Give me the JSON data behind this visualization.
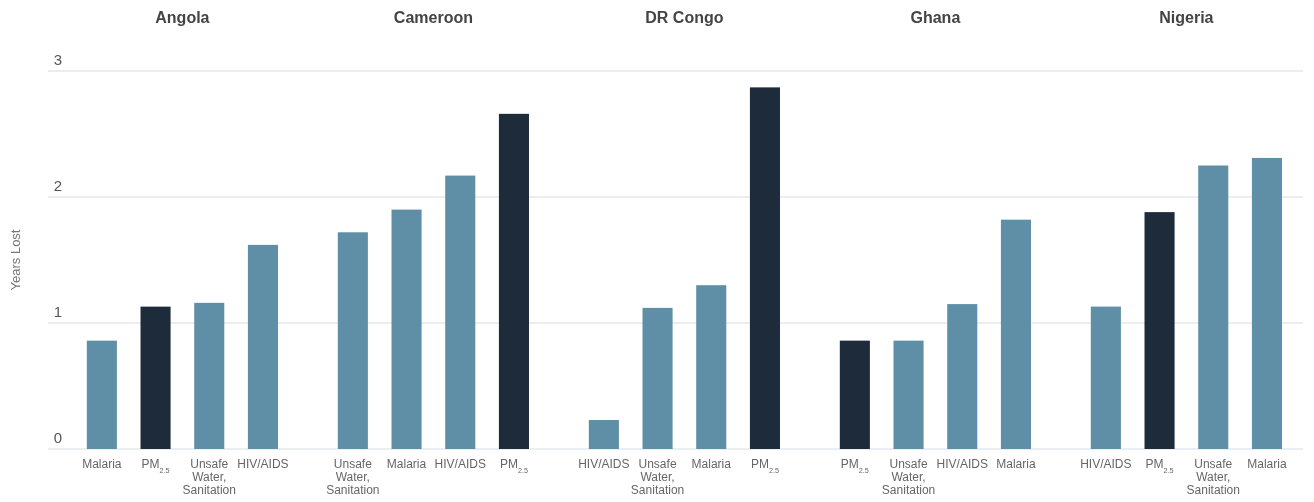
{
  "chart_data": [
    {
      "type": "bar",
      "title": "Angola",
      "ylabel": "Years Lost",
      "categories": [
        "Malaria",
        "PM$_{2.5}$",
        "Unsafe Water, Sanitation",
        "HIV/AIDS"
      ],
      "values": [
        0.86,
        1.13,
        1.16,
        1.62
      ],
      "colors": [
        "#5e8fa6",
        "#1e2b3a",
        "#5e8fa6",
        "#5e8fa6"
      ],
      "ylim": [
        0,
        3
      ],
      "yticks": [
        0,
        1,
        2,
        3
      ],
      "grid": "y"
    },
    {
      "type": "bar",
      "title": "Cameroon",
      "categories": [
        "Unsafe Water, Sanitation",
        "Malaria",
        "HIV/AIDS",
        "PM$_{2.5}$"
      ],
      "values": [
        1.72,
        1.9,
        2.17,
        2.66
      ],
      "colors": [
        "#5e8fa6",
        "#5e8fa6",
        "#5e8fa6",
        "#1e2b3a"
      ],
      "ylim": [
        0,
        3
      ],
      "yticks": [
        0,
        1,
        2,
        3
      ],
      "grid": "y",
      "tick_labels": "x"
    },
    {
      "type": "bar",
      "title": "DR Congo",
      "categories": [
        "HIV/AIDS",
        "Unsafe Water, Sanitation",
        "Malaria",
        "PM$_{2.5}$"
      ],
      "values": [
        0.23,
        1.12,
        1.3,
        2.87
      ],
      "colors": [
        "#5e8fa6",
        "#5e8fa6",
        "#5e8fa6",
        "#1e2b3a"
      ],
      "ylim": [
        0,
        3
      ],
      "yticks": [
        0,
        1,
        2,
        3
      ],
      "grid": "y",
      "tick_labels": "x"
    },
    {
      "type": "bar",
      "title": "Ghana",
      "categories": [
        "PM$_{2.5}$",
        "Unsafe Water, Sanitation",
        "HIV/AIDS",
        "Malaria"
      ],
      "values": [
        0.86,
        0.86,
        1.15,
        1.82
      ],
      "colors": [
        "#1e2b3a",
        "#5e8fa6",
        "#5e8fa6",
        "#5e8fa6"
      ],
      "ylim": [
        0,
        3
      ],
      "yticks": [
        0,
        1,
        2,
        3
      ],
      "grid": "y",
      "tick_labels": "x"
    },
    {
      "type": "bar",
      "title": "Nigeria",
      "categories": [
        "HIV/AIDS",
        "PM$_{2.5}$",
        "Unsafe Water, Sanitation",
        "Malaria"
      ],
      "values": [
        1.13,
        1.88,
        2.25,
        2.31
      ],
      "colors": [
        "#5e8fa6",
        "#1e2b3a",
        "#5e8fa6",
        "#5e8fa6"
      ],
      "ylim": [
        0,
        3
      ],
      "yticks": [
        0,
        1,
        2,
        3
      ],
      "grid": "y",
      "tick_labels": "x"
    }
  ]
}
